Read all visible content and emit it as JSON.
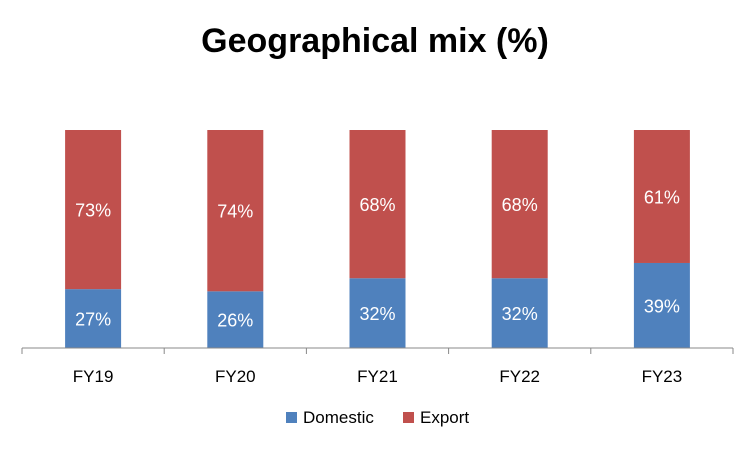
{
  "chart_data": {
    "type": "bar",
    "stacked": true,
    "title": "Geographical mix (%)",
    "xlabel": "",
    "ylabel": "",
    "ylim": [
      0,
      100
    ],
    "grid": false,
    "legend_position": "bottom",
    "categories": [
      "FY19",
      "FY20",
      "FY21",
      "FY22",
      "FY23"
    ],
    "series": [
      {
        "name": "Domestic",
        "color": "#4F81BD",
        "values": [
          27,
          26,
          32,
          32,
          39
        ],
        "labels": [
          "27%",
          "26%",
          "32%",
          "32%",
          "39%"
        ]
      },
      {
        "name": "Export",
        "color": "#C0504D",
        "values": [
          73,
          74,
          68,
          68,
          61
        ],
        "labels": [
          "73%",
          "74%",
          "68%",
          "68%",
          "61%"
        ]
      }
    ]
  }
}
